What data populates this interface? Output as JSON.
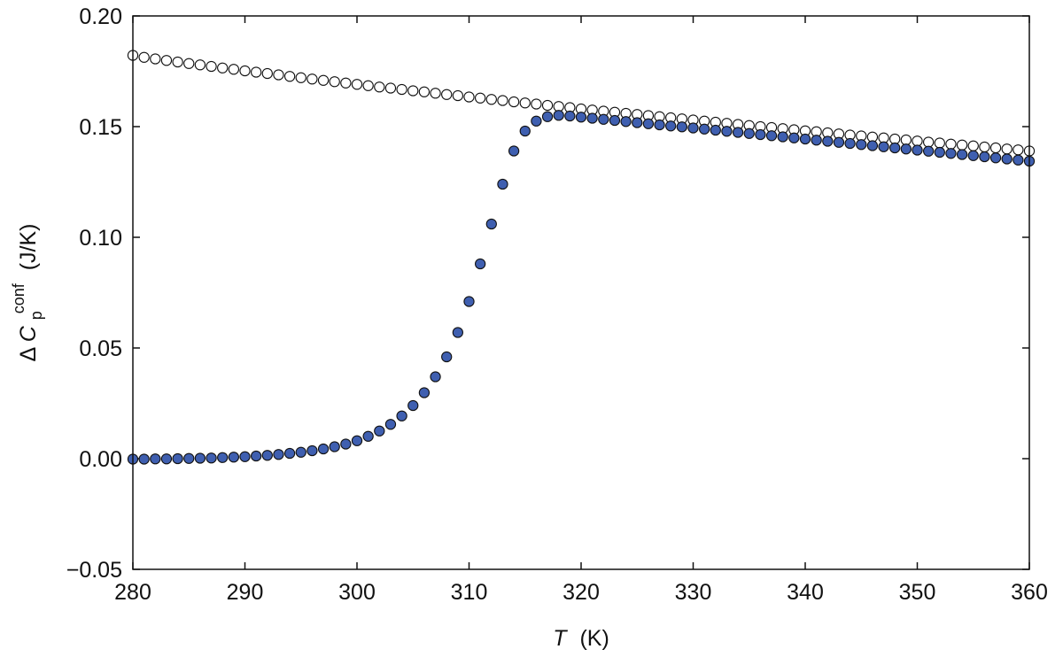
{
  "chart_data": {
    "type": "scatter",
    "xlabel": {
      "symbol": "T",
      "unit": "(K)"
    },
    "ylabel": {
      "delta": "Δ",
      "symbol": "C",
      "subscript": "p",
      "superscript": "conf",
      "unit": "(J/K)"
    },
    "xlim": [
      280,
      360
    ],
    "ylim": [
      -0.05,
      0.2
    ],
    "x_ticks": [
      280,
      290,
      300,
      310,
      320,
      330,
      340,
      350,
      360
    ],
    "x_tick_labels": [
      "280",
      "290",
      "300",
      "310",
      "320",
      "330",
      "340",
      "350",
      "360"
    ],
    "y_ticks": [
      -0.05,
      0.0,
      0.05,
      0.1,
      0.15,
      0.2
    ],
    "y_tick_labels": [
      "−0.05",
      "0.00",
      "0.05",
      "0.10",
      "0.15",
      "0.20"
    ],
    "grid": false,
    "legend": "none",
    "colors": {
      "filled": "#3f5fb0",
      "open_fill": "#ffffff",
      "edge": "#111111"
    },
    "series": [
      {
        "marker": "open-circle",
        "x": [
          280.0,
          281.0,
          282.0,
          283.0,
          284.0,
          285.0,
          286.0,
          287.0,
          288.0,
          289.0,
          290.0,
          291.0,
          292.0,
          293.0,
          294.0,
          295.0,
          296.0,
          297.0,
          298.0,
          299.0,
          300.0,
          301.0,
          302.0,
          303.0,
          304.0,
          305.0,
          306.0,
          307.0,
          308.0,
          309.0,
          310.0,
          311.0,
          312.0,
          313.0,
          314.0,
          315.0,
          316.0,
          317.0,
          318.0,
          319.0,
          320.0,
          321.0,
          322.0,
          323.0,
          324.0,
          325.0,
          326.0,
          327.0,
          328.0,
          329.0,
          330.0,
          331.0,
          332.0,
          333.0,
          334.0,
          335.0,
          336.0,
          337.0,
          338.0,
          339.0,
          340.0,
          341.0,
          342.0,
          343.0,
          344.0,
          345.0,
          346.0,
          347.0,
          348.0,
          349.0,
          350.0,
          351.0,
          352.0,
          353.0,
          354.0,
          355.0,
          356.0,
          357.0,
          358.0,
          359.0,
          360.0
        ],
        "y": [
          0.1822,
          0.1813,
          0.1806,
          0.1799,
          0.1792,
          0.1785,
          0.1779,
          0.1772,
          0.1765,
          0.1759,
          0.1752,
          0.1746,
          0.174,
          0.1734,
          0.1727,
          0.1721,
          0.1715,
          0.1709,
          0.1703,
          0.1697,
          0.1691,
          0.1685,
          0.1679,
          0.1674,
          0.1668,
          0.1662,
          0.1657,
          0.1651,
          0.1645,
          0.164,
          0.1634,
          0.1629,
          0.1623,
          0.1618,
          0.1612,
          0.1607,
          0.1602,
          0.1596,
          0.1591,
          0.1586,
          0.158,
          0.1575,
          0.157,
          0.1565,
          0.156,
          0.1555,
          0.155,
          0.1545,
          0.154,
          0.1535,
          0.153,
          0.1525,
          0.152,
          0.1515,
          0.151,
          0.1505,
          0.15,
          0.1496,
          0.1491,
          0.1486,
          0.1481,
          0.1477,
          0.1472,
          0.1467,
          0.1462,
          0.1458,
          0.1453,
          0.1449,
          0.1444,
          0.144,
          0.1435,
          0.143,
          0.1426,
          0.1421,
          0.1417,
          0.1413,
          0.1408,
          0.1404,
          0.1399,
          0.1395,
          0.139
        ]
      },
      {
        "marker": "filled-circle",
        "x": [
          280.0,
          281.0,
          282.0,
          283.0,
          284.0,
          285.0,
          286.0,
          287.0,
          288.0,
          289.0,
          290.0,
          291.0,
          292.0,
          293.0,
          294.0,
          295.0,
          296.0,
          297.0,
          298.0,
          299.0,
          300.0,
          301.0,
          302.0,
          303.0,
          304.0,
          305.0,
          306.0,
          307.0,
          308.0,
          309.0,
          310.0,
          311.0,
          312.0,
          313.0,
          314.0,
          315.0,
          316.0,
          317.0,
          318.0,
          319.0,
          320.0,
          321.0,
          322.0,
          323.0,
          324.0,
          325.0,
          326.0,
          327.0,
          328.0,
          329.0,
          330.0,
          331.0,
          332.0,
          333.0,
          334.0,
          335.0,
          336.0,
          337.0,
          338.0,
          339.0,
          340.0,
          341.0,
          342.0,
          343.0,
          344.0,
          345.0,
          346.0,
          347.0,
          348.0,
          349.0,
          350.0,
          351.0,
          352.0,
          353.0,
          354.0,
          355.0,
          356.0,
          357.0,
          358.0,
          359.0,
          360.0
        ],
        "y": [
          -0.0002,
          -0.0002,
          -0.0001,
          -0.0001,
          0.0,
          0.0001,
          0.0002,
          0.0003,
          0.0005,
          0.0007,
          0.0009,
          0.0012,
          0.0015,
          0.0019,
          0.0024,
          0.0029,
          0.0036,
          0.0044,
          0.0054,
          0.0066,
          0.0081,
          0.0101,
          0.0125,
          0.0155,
          0.0193,
          0.024,
          0.0298,
          0.037,
          0.046,
          0.057,
          0.071,
          0.088,
          0.106,
          0.124,
          0.139,
          0.148,
          0.1525,
          0.1545,
          0.1551,
          0.1548,
          0.1543,
          0.1538,
          0.1533,
          0.1528,
          0.1523,
          0.1518,
          0.1513,
          0.1508,
          0.1503,
          0.1499,
          0.1494,
          0.1489,
          0.1484,
          0.1479,
          0.1474,
          0.1469,
          0.1464,
          0.1459,
          0.1454,
          0.1449,
          0.1444,
          0.1439,
          0.1434,
          0.1429,
          0.1424,
          0.1419,
          0.1414,
          0.1409,
          0.1404,
          0.1399,
          0.1394,
          0.1389,
          0.1384,
          0.1379,
          0.1374,
          0.1369,
          0.1364,
          0.1359,
          0.1354,
          0.1349,
          0.1344
        ]
      }
    ]
  }
}
